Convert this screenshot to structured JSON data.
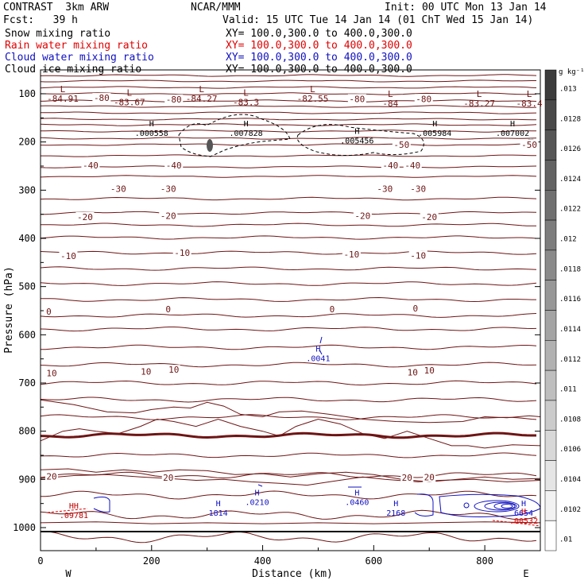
{
  "header": {
    "left_line1": "CONTRAST  3km ARW",
    "center_line1": "NCAR/MMM",
    "right_line1": "Init: 00 UTC Mon 13 Jan 14",
    "fcst": "Fcst:   39 h",
    "valid": "Valid: 15 UTC Tue 14 Jan 14 (01 ChT Wed 15 Jan 14)"
  },
  "fields": [
    {
      "name": "Snow mixing ratio",
      "xy": "XY= 100.0,300.0 to 400.0,300.0",
      "color": "#000000"
    },
    {
      "name": "Rain water mixing ratio",
      "xy": "XY= 100.0,300.0 to 400.0,300.0",
      "color": "#e00000"
    },
    {
      "name": "Cloud water mixing ratio",
      "xy": "XY= 100.0,300.0 to 400.0,300.0",
      "color": "#1010c0"
    },
    {
      "name": "Cloud ice mixing ratio",
      "xy": "XY= 100.0,300.0 to 400.0,300.0",
      "color": "#000000"
    }
  ],
  "chart_data": {
    "type": "contour-cross-section",
    "xlabel": "Distance (km)",
    "ylabel": "Pressure (hPa)",
    "xlim": [
      0,
      900
    ],
    "ylim": [
      1050,
      50
    ],
    "x_ticks": [
      "0",
      "200",
      "400",
      "600",
      "800"
    ],
    "x_tick_values": [
      0,
      200,
      400,
      600,
      800
    ],
    "y_ticks": [
      "100",
      "200",
      "300",
      "400",
      "500",
      "600",
      "700",
      "800",
      "900",
      "1000"
    ],
    "y_tick_values": [
      100,
      200,
      300,
      400,
      500,
      600,
      700,
      800,
      900,
      1000
    ],
    "end_labels": {
      "left": "W",
      "right": "E"
    },
    "colorbar": {
      "unit_label": "g kg⁻¹",
      "tick_labels": [
        ".013",
        ".0128",
        ".0126",
        ".0124",
        ".0122",
        ".012",
        ".0118",
        ".0116",
        ".0114",
        ".0112",
        ".011",
        ".0108",
        ".0106",
        ".0104",
        ".0102",
        ".01"
      ]
    },
    "contour_color": "#6e1414",
    "contour_labels": [
      {
        "text": "-80",
        "x": 110,
        "p": 110
      },
      {
        "text": "-80",
        "x": 240,
        "p": 113
      },
      {
        "text": "-80",
        "x": 570,
        "p": 112
      },
      {
        "text": "-80",
        "x": 690,
        "p": 112
      },
      {
        "text": "-50",
        "x": 650,
        "p": 207
      },
      {
        "text": "-50",
        "x": 880,
        "p": 207
      },
      {
        "text": "-40",
        "x": 90,
        "p": 250
      },
      {
        "text": "-40",
        "x": 240,
        "p": 250
      },
      {
        "text": "-40",
        "x": 630,
        "p": 250
      },
      {
        "text": "-40",
        "x": 670,
        "p": 250
      },
      {
        "text": "-30",
        "x": 140,
        "p": 299
      },
      {
        "text": "-30",
        "x": 230,
        "p": 299
      },
      {
        "text": "-30",
        "x": 620,
        "p": 299
      },
      {
        "text": "-30",
        "x": 680,
        "p": 299
      },
      {
        "text": "-20",
        "x": 80,
        "p": 357
      },
      {
        "text": "-20",
        "x": 230,
        "p": 355
      },
      {
        "text": "-20",
        "x": 580,
        "p": 355
      },
      {
        "text": "-20",
        "x": 700,
        "p": 357
      },
      {
        "text": "-10",
        "x": 50,
        "p": 438
      },
      {
        "text": "-10",
        "x": 255,
        "p": 431
      },
      {
        "text": "-10",
        "x": 560,
        "p": 435
      },
      {
        "text": "-10",
        "x": 680,
        "p": 437
      },
      {
        "text": "0",
        "x": 15,
        "p": 553
      },
      {
        "text": "0",
        "x": 230,
        "p": 548
      },
      {
        "text": "0",
        "x": 525,
        "p": 548
      },
      {
        "text": "0",
        "x": 675,
        "p": 547
      },
      {
        "text": "10",
        "x": 20,
        "p": 681
      },
      {
        "text": "10",
        "x": 190,
        "p": 678
      },
      {
        "text": "10",
        "x": 240,
        "p": 674
      },
      {
        "text": "10",
        "x": 670,
        "p": 679
      },
      {
        "text": "10",
        "x": 700,
        "p": 675
      },
      {
        "text": "20",
        "x": 20,
        "p": 895
      },
      {
        "text": "20",
        "x": 230,
        "p": 898
      },
      {
        "text": "20",
        "x": 660,
        "p": 898
      },
      {
        "text": "20",
        "x": 700,
        "p": 897
      }
    ],
    "low_centers": [
      {
        "symbol": "L",
        "value": "-84.91",
        "x": 40,
        "p": 97
      },
      {
        "symbol": "L",
        "value": "-83.67",
        "x": 160,
        "p": 104
      },
      {
        "symbol": "L",
        "value": "-84.27",
        "x": 290,
        "p": 97
      },
      {
        "symbol": "L",
        "value": "-83.3",
        "x": 370,
        "p": 104
      },
      {
        "symbol": "L",
        "value": "-82.55",
        "x": 490,
        "p": 97
      },
      {
        "symbol": "L",
        "value": "-84",
        "x": 630,
        "p": 107
      },
      {
        "symbol": "L",
        "value": "-83.27",
        "x": 790,
        "p": 107
      },
      {
        "symbol": "L",
        "value": "-83.4",
        "x": 880,
        "p": 107
      }
    ],
    "high_centers": [
      {
        "symbol": "H",
        "value": ".000558",
        "x": 200,
        "p": 187,
        "color": "#000000"
      },
      {
        "symbol": "H",
        "value": ".007828",
        "x": 370,
        "p": 187,
        "color": "#000000"
      },
      {
        "symbol": "H",
        "value": ".005456",
        "x": 570,
        "p": 203,
        "color": "#000000"
      },
      {
        "symbol": "H",
        "value": ".005984",
        "x": 710,
        "p": 187,
        "color": "#000000"
      },
      {
        "symbol": "H",
        "value": ".007002",
        "x": 850,
        "p": 187,
        "color": "#000000"
      },
      {
        "symbol": "H",
        "value": ".0041",
        "x": 500,
        "p": 655,
        "color": "#1010c0"
      },
      {
        "symbol": "H",
        "value": ".0210",
        "x": 390,
        "p": 953,
        "color": "#1010c0"
      },
      {
        "symbol": "H",
        "value": ".0460",
        "x": 570,
        "p": 953,
        "color": "#1010c0"
      },
      {
        "symbol": "H",
        "value": "1814",
        "x": 320,
        "p": 975,
        "color": "#1010c0"
      },
      {
        "symbol": "H",
        "value": "2168",
        "x": 640,
        "p": 975,
        "color": "#1010c0"
      },
      {
        "symbol": "H",
        "value": "6654",
        "x": 870,
        "p": 975,
        "color": "#1010c0"
      },
      {
        "symbol": "H",
        "value": ".00532",
        "x": 870,
        "p": 992,
        "color": "#e00000"
      },
      {
        "symbol": "HH",
        "value": ".09781",
        "x": 60,
        "p": 980,
        "color": "#c00000"
      }
    ]
  }
}
